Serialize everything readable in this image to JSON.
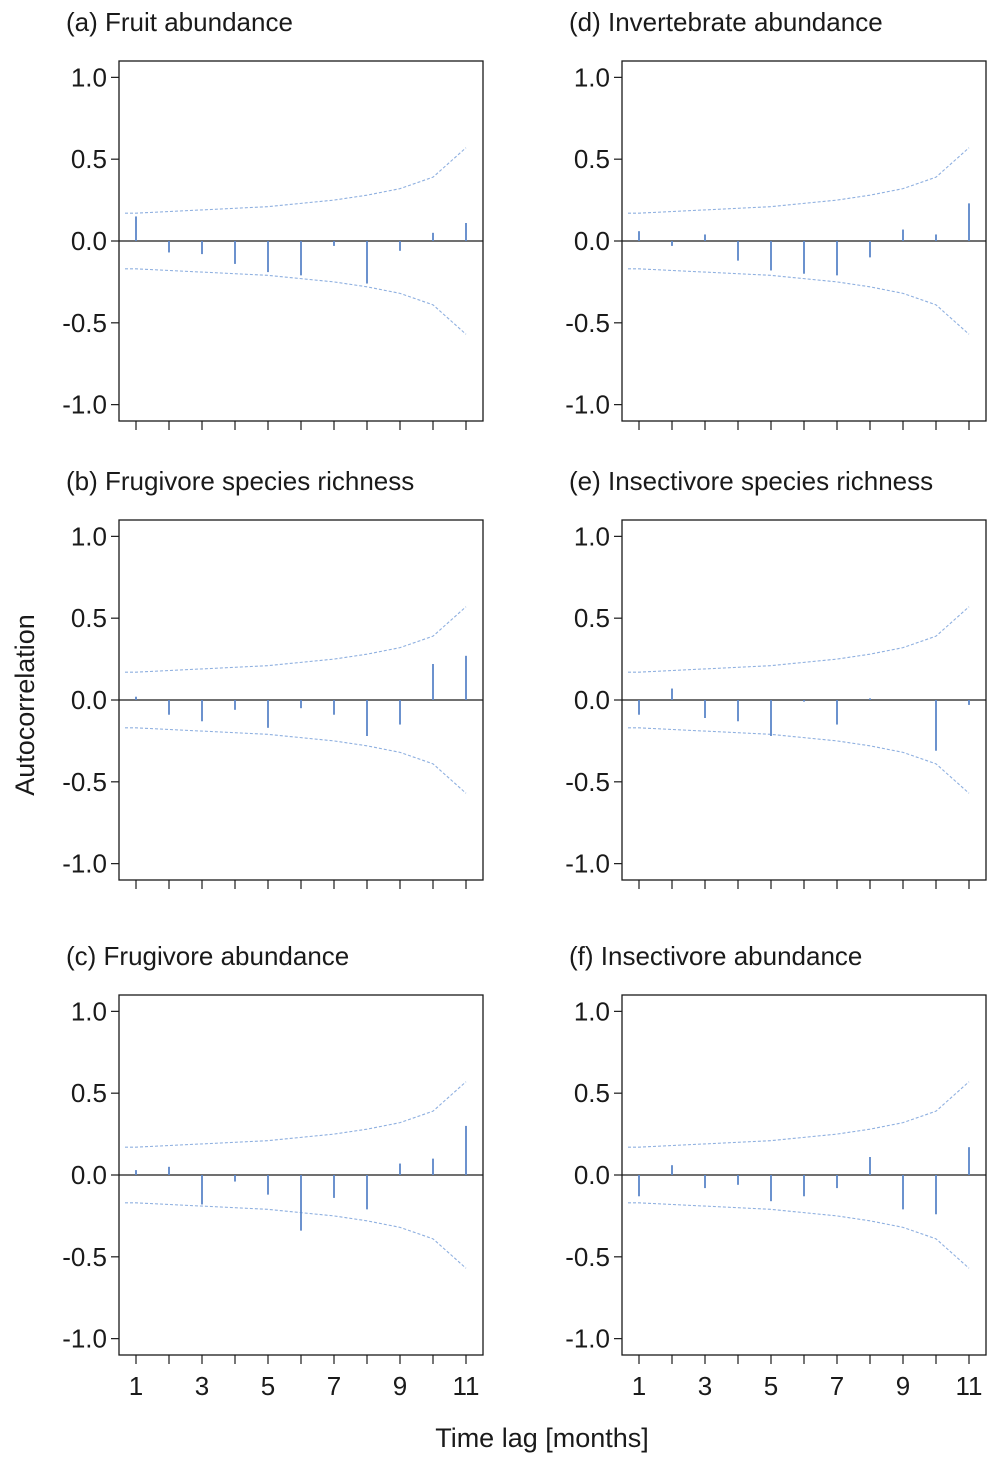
{
  "figure": {
    "ylabel": "Autocorrelation",
    "xlabel": "Time lag [months]"
  },
  "colors": {
    "bars": "#5b86c8",
    "confidence": "#8fb0e0",
    "axes": "#1a1a1a"
  },
  "chart_data": [
    {
      "id": "a",
      "type": "bar",
      "title": "(a) Fruit abundance",
      "x": [
        1,
        2,
        3,
        4,
        5,
        6,
        7,
        8,
        9,
        10,
        11
      ],
      "values": [
        0.15,
        -0.07,
        -0.08,
        -0.14,
        -0.19,
        -0.21,
        -0.03,
        -0.26,
        -0.06,
        0.05,
        0.11
      ],
      "ylim": [
        -1.1,
        1.1
      ],
      "yticks": [
        1.0,
        0.5,
        0.0,
        -0.5,
        -1.0
      ],
      "ytick_labels": [
        "1.0",
        "0.5",
        "0.0",
        "-0.5",
        "-1.0"
      ],
      "xticks": [
        1,
        3,
        5,
        7,
        9,
        11
      ],
      "xtick_labels": [],
      "confidence_band": [
        0.17,
        0.18,
        0.19,
        0.2,
        0.21,
        0.23,
        0.25,
        0.28,
        0.32,
        0.39,
        0.57
      ]
    },
    {
      "id": "b",
      "type": "bar",
      "title": "(b) Frugivore species richness",
      "x": [
        1,
        2,
        3,
        4,
        5,
        6,
        7,
        8,
        9,
        10,
        11
      ],
      "values": [
        0.02,
        -0.09,
        -0.13,
        -0.06,
        -0.17,
        -0.05,
        -0.09,
        -0.22,
        -0.15,
        0.22,
        0.27
      ],
      "ylim": [
        -1.1,
        1.1
      ],
      "yticks": [
        1.0,
        0.5,
        0.0,
        -0.5,
        -1.0
      ],
      "ytick_labels": [
        "1.0",
        "0.5",
        "0.0",
        "-0.5",
        "-1.0"
      ],
      "xticks": [
        1,
        3,
        5,
        7,
        9,
        11
      ],
      "xtick_labels": [],
      "confidence_band": [
        0.17,
        0.18,
        0.19,
        0.2,
        0.21,
        0.23,
        0.25,
        0.28,
        0.32,
        0.39,
        0.57
      ]
    },
    {
      "id": "c",
      "type": "bar",
      "title": "(c) Frugivore abundance",
      "x": [
        1,
        2,
        3,
        4,
        5,
        6,
        7,
        8,
        9,
        10,
        11
      ],
      "values": [
        0.03,
        0.05,
        -0.18,
        -0.04,
        -0.12,
        -0.34,
        -0.14,
        -0.21,
        0.07,
        0.1,
        0.3
      ],
      "ylim": [
        -1.1,
        1.1
      ],
      "yticks": [
        1.0,
        0.5,
        0.0,
        -0.5,
        -1.0
      ],
      "ytick_labels": [
        "1.0",
        "0.5",
        "0.0",
        "-0.5",
        "-1.0"
      ],
      "xticks": [
        1,
        3,
        5,
        7,
        9,
        11
      ],
      "xtick_labels": [
        "1",
        "3",
        "5",
        "7",
        "9",
        "11"
      ],
      "confidence_band": [
        0.17,
        0.18,
        0.19,
        0.2,
        0.21,
        0.23,
        0.25,
        0.28,
        0.32,
        0.39,
        0.57
      ]
    },
    {
      "id": "d",
      "type": "bar",
      "title": "(d) Invertebrate abundance",
      "x": [
        1,
        2,
        3,
        4,
        5,
        6,
        7,
        8,
        9,
        10,
        11
      ],
      "values": [
        0.06,
        -0.03,
        0.04,
        -0.12,
        -0.18,
        -0.2,
        -0.21,
        -0.1,
        0.07,
        0.04,
        0.23
      ],
      "ylim": [
        -1.1,
        1.1
      ],
      "yticks": [
        1.0,
        0.5,
        0.0,
        -0.5,
        -1.0
      ],
      "ytick_labels": [
        "1.0",
        "0.5",
        "0.0",
        "-0.5",
        "-1.0"
      ],
      "xticks": [
        1,
        3,
        5,
        7,
        9,
        11
      ],
      "xtick_labels": [],
      "confidence_band": [
        0.17,
        0.18,
        0.19,
        0.2,
        0.21,
        0.23,
        0.25,
        0.28,
        0.32,
        0.39,
        0.57
      ]
    },
    {
      "id": "e",
      "type": "bar",
      "title": "(e) Insectivore species richness",
      "x": [
        1,
        2,
        3,
        4,
        5,
        6,
        7,
        8,
        9,
        10,
        11
      ],
      "values": [
        -0.09,
        0.07,
        -0.11,
        -0.13,
        -0.22,
        -0.01,
        -0.15,
        0.01,
        0.0,
        -0.31,
        -0.03
      ],
      "ylim": [
        -1.1,
        1.1
      ],
      "yticks": [
        1.0,
        0.5,
        0.0,
        -0.5,
        -1.0
      ],
      "ytick_labels": [
        "1.0",
        "0.5",
        "0.0",
        "-0.5",
        "-1.0"
      ],
      "xticks": [
        1,
        3,
        5,
        7,
        9,
        11
      ],
      "xtick_labels": [],
      "confidence_band": [
        0.17,
        0.18,
        0.19,
        0.2,
        0.21,
        0.23,
        0.25,
        0.28,
        0.32,
        0.39,
        0.57
      ]
    },
    {
      "id": "f",
      "type": "bar",
      "title": "(f) Insectivore abundance",
      "x": [
        1,
        2,
        3,
        4,
        5,
        6,
        7,
        8,
        9,
        10,
        11
      ],
      "values": [
        -0.13,
        0.06,
        -0.08,
        -0.06,
        -0.16,
        -0.13,
        -0.08,
        0.11,
        -0.21,
        -0.24,
        0.17
      ],
      "ylim": [
        -1.1,
        1.1
      ],
      "yticks": [
        1.0,
        0.5,
        0.0,
        -0.5,
        -1.0
      ],
      "ytick_labels": [
        "1.0",
        "0.5",
        "0.0",
        "-0.5",
        "-1.0"
      ],
      "xticks": [
        1,
        3,
        5,
        7,
        9,
        11
      ],
      "xtick_labels": [
        "1",
        "3",
        "5",
        "7",
        "9",
        "11"
      ],
      "confidence_band": [
        0.17,
        0.18,
        0.19,
        0.2,
        0.21,
        0.23,
        0.25,
        0.28,
        0.32,
        0.39,
        0.57
      ]
    }
  ]
}
